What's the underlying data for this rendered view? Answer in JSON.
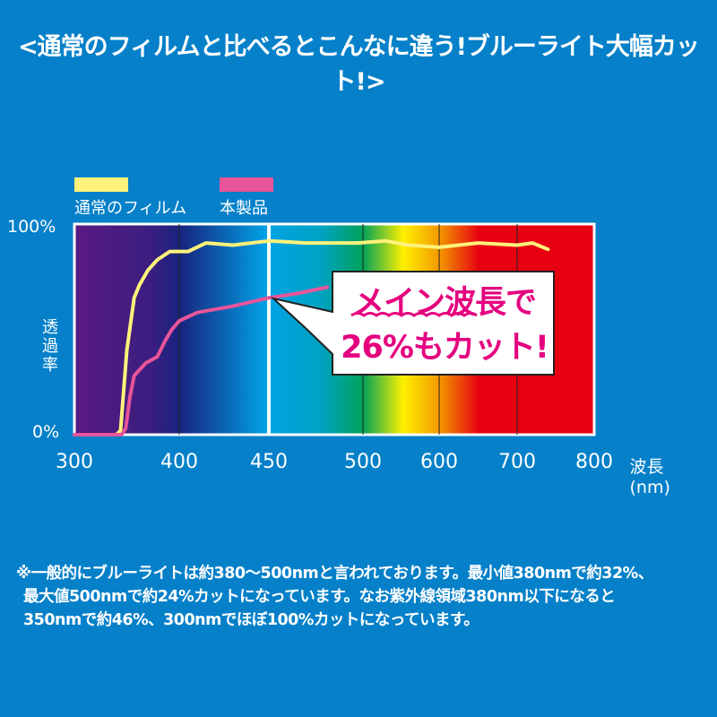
{
  "title": "<通常のフィルムと比べるとこんなに違う!ブルーライト大幅カット!>",
  "callout": {
    "line1": "メイン波長で",
    "line2": "26%もカット!",
    "text_color": "#e4007f"
  },
  "note": [
    "※一般的にブルーライトは約380～500nmと言われております。最小値380nmで約32%、",
    "最大値500nmで約24%カットになっています。なお紫外線領域380nm以下になると",
    "350nmで約46%、300nmでほぼ100%カットになっています。"
  ],
  "colors": {
    "background": "#0580c9",
    "normal_film": "#fff27a",
    "product": "#e8559a"
  },
  "chart_data": {
    "type": "line",
    "title": "",
    "xlabel": "波長(nm)",
    "ylabel": "透過率",
    "x_ticks": [
      300,
      400,
      450,
      500,
      600,
      700,
      800
    ],
    "x_tick_labels": [
      "300",
      "400",
      "450",
      "500",
      "600",
      "700",
      "800"
    ],
    "y_ticks": [
      0,
      100
    ],
    "y_tick_labels": [
      "0%",
      "100%"
    ],
    "xlim": [
      300,
      800
    ],
    "ylim": [
      0,
      100
    ],
    "x_scale": "non-uniform",
    "grid": true,
    "highlight_line_x": 450,
    "legend_placement": "top-left",
    "background": "visible light spectrum",
    "series": [
      {
        "name": "通常のフィルム",
        "color": "#fff27a",
        "x": [
          300,
          340,
          344,
          350,
          357,
          362,
          370,
          379,
          391,
          405,
          415,
          430,
          450,
          470,
          497,
          530,
          560,
          600,
          650,
          700,
          720,
          740
        ],
        "y": [
          0,
          0,
          2,
          40,
          65,
          71,
          78,
          83,
          87,
          87,
          91,
          90,
          92,
          91,
          91,
          92,
          90,
          89,
          91,
          90,
          91,
          88
        ]
      },
      {
        "name": "本製品",
        "color": "#e8559a",
        "x": [
          300,
          345,
          349,
          353,
          357,
          368,
          379,
          387,
          393,
          400,
          410,
          430,
          450,
          465,
          481
        ],
        "y": [
          0,
          0,
          3,
          18,
          28,
          34,
          37,
          45,
          50,
          54,
          58,
          61,
          65,
          67,
          70
        ]
      }
    ]
  }
}
